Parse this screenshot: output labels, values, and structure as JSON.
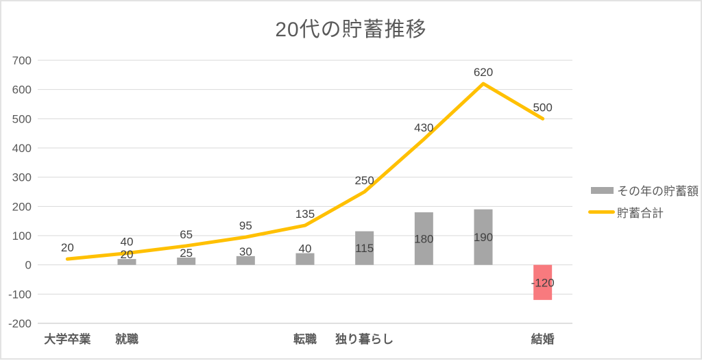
{
  "title": "20代の貯蓄推移",
  "legend": {
    "items": [
      {
        "label": "その年の貯蓄額",
        "type": "bar",
        "color": "#A6A6A6"
      },
      {
        "label": "貯蓄合計",
        "type": "line",
        "color": "#FFC000"
      }
    ]
  },
  "colors": {
    "bar": "#A6A6A6",
    "bar_negative": "#F87A7E",
    "line": "#FFC000",
    "gridline": "#D9D9D9",
    "axis_line": "#BFBFBF",
    "axis_text": "#595959",
    "data_label_text": "#404040",
    "title_text": "#595959"
  },
  "chart_data": {
    "type": "combo",
    "title": "20代の貯蓄推移",
    "categories": [
      "大学卒業",
      "就職",
      "",
      "",
      "転職",
      "独り暮らし",
      "",
      "",
      "結婚"
    ],
    "series": [
      {
        "name": "その年の貯蓄額",
        "type": "bar",
        "values": [
          null,
          20,
          25,
          30,
          40,
          115,
          180,
          190,
          -120
        ]
      },
      {
        "name": "貯蓄合計",
        "type": "line",
        "values": [
          20,
          40,
          65,
          95,
          135,
          250,
          430,
          620,
          500
        ]
      }
    ],
    "ylim": [
      -200,
      700
    ],
    "ytick_interval": 100,
    "yticks": [
      700,
      600,
      500,
      400,
      300,
      200,
      100,
      0,
      -100,
      -200
    ],
    "grid": true,
    "legend_position": "right",
    "data_labels": true
  }
}
